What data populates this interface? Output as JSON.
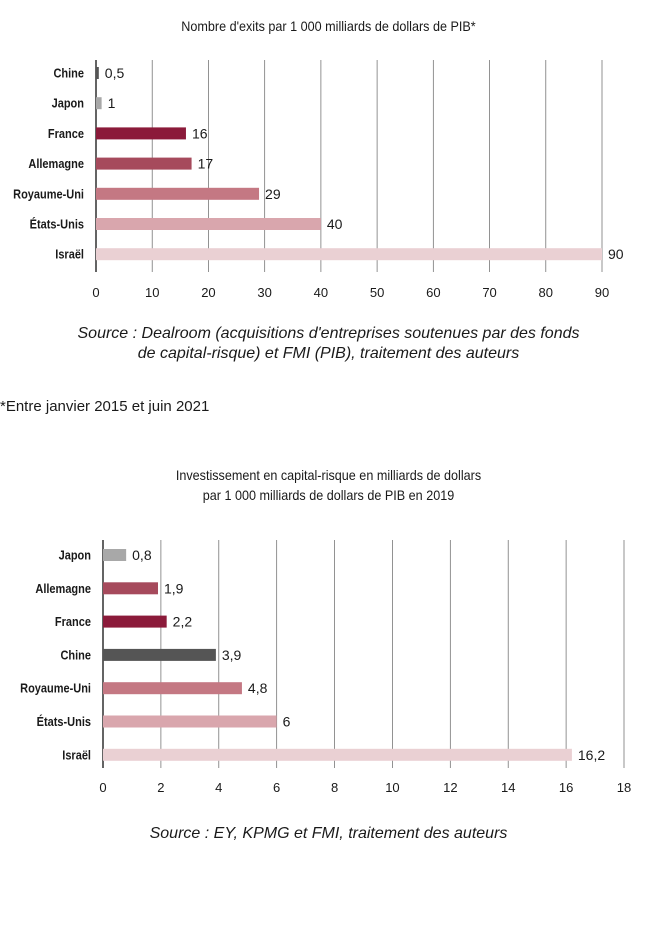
{
  "charts": [
    {
      "type": "bar",
      "orientation": "horizontal",
      "title": "Nombre d'exits par 1 000 milliards de dollars de PIB*",
      "categories": [
        "Chine",
        "Japon",
        "France",
        "Allemagne",
        "Royaume-Uni",
        "États-Unis",
        "Israël"
      ],
      "values": [
        0.5,
        1,
        16,
        17,
        29,
        40,
        90
      ],
      "value_labels": [
        "0,5",
        "1",
        "16",
        "17",
        "29",
        "40",
        "90"
      ],
      "colors": [
        "#555555",
        "#a8a8a8",
        "#8b1a3a",
        "#a64a5c",
        "#c47883",
        "#d9a6ad",
        "#ead0d3"
      ],
      "xlim": [
        0,
        90
      ],
      "x_ticks": [
        0,
        10,
        20,
        30,
        40,
        50,
        60,
        70,
        80,
        90
      ],
      "grid": true,
      "source": "Source : Dealroom (acquisitions d'entreprises soutenues par des fonds de capital-risque) et FMI (PIB), traitement des auteurs"
    },
    {
      "type": "bar",
      "orientation": "horizontal",
      "title": "Investissement en capital-risque en milliards de dollars par 1 000 milliards de dollars de PIB en 2019",
      "categories": [
        "Japon",
        "Allemagne",
        "France",
        "Chine",
        "Royaume-Uni",
        "États-Unis",
        "Israël"
      ],
      "values": [
        0.8,
        1.9,
        2.2,
        3.9,
        4.8,
        6,
        16.2
      ],
      "value_labels": [
        "0,8",
        "1,9",
        "2,2",
        "3,9",
        "4,8",
        "6",
        "16,2"
      ],
      "colors": [
        "#a8a8a8",
        "#a64a5c",
        "#8b1a3a",
        "#555555",
        "#c47883",
        "#d9a6ad",
        "#ead0d3"
      ],
      "xlim": [
        0,
        18
      ],
      "x_ticks": [
        0,
        2,
        4,
        6,
        8,
        10,
        12,
        14,
        16,
        18
      ],
      "grid": true,
      "source": "Source : EY, KPMG et FMI, traitement des auteurs"
    }
  ],
  "page": {
    "title1_line1": "Nombre d'exits par 1 000 milliards de dollars de PIB*",
    "source1_line1": "Source : Dealroom (acquisitions d'entreprises soutenues par des fonds",
    "source1_line2": "de capital-risque) et FMI (PIB), traitement des auteurs",
    "footnote": "*Entre janvier 2015 et juin 2021",
    "title2_line1": "Investissement en capital-risque en milliards de dollars",
    "title2_line2": "par 1 000 milliards de dollars de PIB en 2019",
    "source2_line1": "Source : EY, KPMG et FMI, traitement des auteurs"
  }
}
